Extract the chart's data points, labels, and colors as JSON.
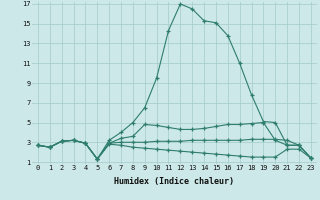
{
  "xlabel": "Humidex (Indice chaleur)",
  "x": [
    0,
    1,
    2,
    3,
    4,
    5,
    6,
    7,
    8,
    9,
    10,
    11,
    12,
    13,
    14,
    15,
    16,
    17,
    18,
    19,
    20,
    21,
    22,
    23
  ],
  "series": [
    [
      2.7,
      2.5,
      3.1,
      3.2,
      2.9,
      1.3,
      3.2,
      4.0,
      5.0,
      6.5,
      9.5,
      14.3,
      17.0,
      16.5,
      15.3,
      15.1,
      13.8,
      11.0,
      7.8,
      5.1,
      5.0,
      2.7,
      2.7,
      1.4
    ],
    [
      2.7,
      2.5,
      3.1,
      3.2,
      2.9,
      1.3,
      2.9,
      3.4,
      3.6,
      4.8,
      4.7,
      4.5,
      4.3,
      4.3,
      4.4,
      4.6,
      4.8,
      4.8,
      4.9,
      5.0,
      3.2,
      2.7,
      2.7,
      1.4
    ],
    [
      2.7,
      2.5,
      3.1,
      3.2,
      2.9,
      1.3,
      2.9,
      3.0,
      3.0,
      3.0,
      3.1,
      3.1,
      3.1,
      3.2,
      3.2,
      3.2,
      3.2,
      3.2,
      3.3,
      3.3,
      3.3,
      3.2,
      2.7,
      1.4
    ],
    [
      2.7,
      2.5,
      3.1,
      3.2,
      2.9,
      1.3,
      2.8,
      2.7,
      2.5,
      2.4,
      2.3,
      2.2,
      2.1,
      2.0,
      1.9,
      1.8,
      1.7,
      1.6,
      1.5,
      1.5,
      1.5,
      2.3,
      2.3,
      1.4
    ]
  ],
  "line_color": "#2e7d6e",
  "bg_color": "#cce8e8",
  "grid_color": "#aacece",
  "ylim": [
    1,
    17
  ],
  "xlim": [
    -0.5,
    23.5
  ],
  "yticks": [
    1,
    3,
    5,
    7,
    9,
    11,
    13,
    15,
    17
  ],
  "xticks": [
    0,
    1,
    2,
    3,
    4,
    5,
    6,
    7,
    8,
    9,
    10,
    11,
    12,
    13,
    14,
    15,
    16,
    17,
    18,
    19,
    20,
    21,
    22,
    23
  ],
  "tick_fontsize": 5.0,
  "xlabel_fontsize": 6.0
}
